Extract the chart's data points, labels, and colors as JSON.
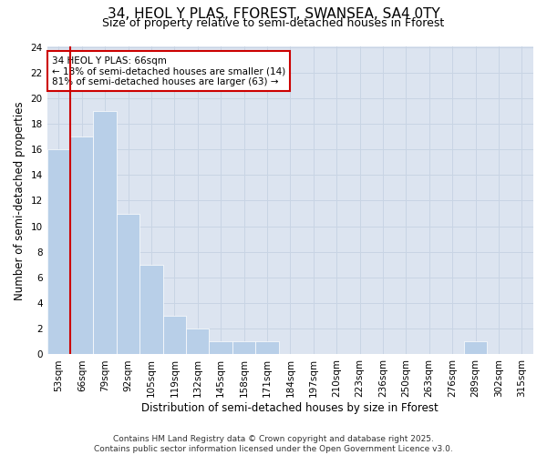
{
  "title": "34, HEOL Y PLAS, FFOREST, SWANSEA, SA4 0TY",
  "subtitle": "Size of property relative to semi-detached houses in Fforest",
  "xlabel": "Distribution of semi-detached houses by size in Fforest",
  "ylabel": "Number of semi-detached properties",
  "bins": [
    "53sqm",
    "66sqm",
    "79sqm",
    "92sqm",
    "105sqm",
    "119sqm",
    "132sqm",
    "145sqm",
    "158sqm",
    "171sqm",
    "184sqm",
    "197sqm",
    "210sqm",
    "223sqm",
    "236sqm",
    "250sqm",
    "263sqm",
    "276sqm",
    "289sqm",
    "302sqm",
    "315sqm"
  ],
  "values": [
    16,
    17,
    19,
    11,
    7,
    3,
    2,
    1,
    1,
    1,
    0,
    0,
    0,
    0,
    0,
    0,
    0,
    0,
    1,
    0,
    0
  ],
  "bar_color": "#b8cfe8",
  "bar_edge_color": "#ffffff",
  "subject_bin_index": 1,
  "subject_line_color": "#cc0000",
  "annotation_title": "34 HEOL Y PLAS: 66sqm",
  "annotation_line1": "← 18% of semi-detached houses are smaller (14)",
  "annotation_line2": "81% of semi-detached houses are larger (63) →",
  "annotation_box_color": "#cc0000",
  "ylim": [
    0,
    24
  ],
  "yticks": [
    0,
    2,
    4,
    6,
    8,
    10,
    12,
    14,
    16,
    18,
    20,
    22,
    24
  ],
  "grid_color": "#c8d4e4",
  "background_color": "#dce4f0",
  "footer": "Contains HM Land Registry data © Crown copyright and database right 2025.\nContains public sector information licensed under the Open Government Licence v3.0.",
  "title_fontsize": 11,
  "subtitle_fontsize": 9,
  "xlabel_fontsize": 8.5,
  "ylabel_fontsize": 8.5,
  "tick_fontsize": 7.5,
  "annotation_fontsize": 7.5,
  "footer_fontsize": 6.5
}
